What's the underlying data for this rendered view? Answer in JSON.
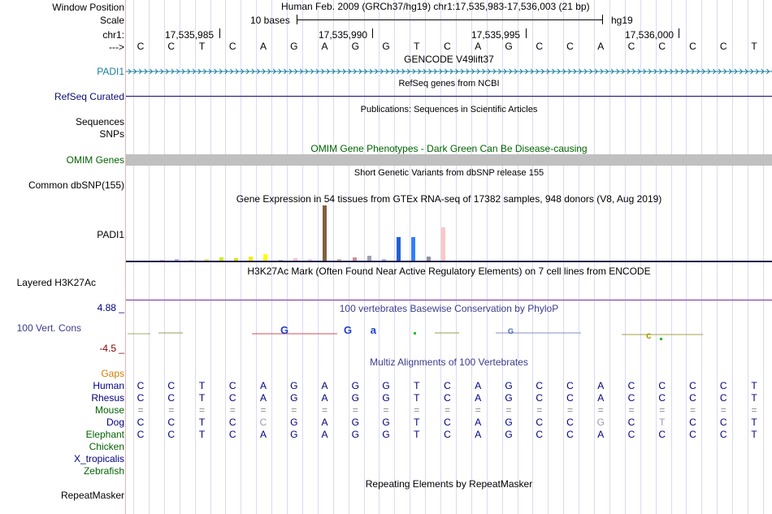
{
  "header": {
    "window_position_label": "Window Position",
    "scale_label": "Scale",
    "chrom_label": "chr1:",
    "strand_label": "--->",
    "position_text": "Human Feb. 2009 (GRCh37/hg19)   chr1:17,535,983-17,536,003 (21 bp)",
    "scale_text": "10 bases",
    "assembly": "hg19",
    "ticks": [
      "17,535,985",
      "17,535,990",
      "17,535,995",
      "17,536,000"
    ]
  },
  "sequence": [
    "C",
    "C",
    "T",
    "C",
    "A",
    "G",
    "A",
    "G",
    "G",
    "T",
    "C",
    "A",
    "G",
    "C",
    "C",
    "A",
    "C",
    "C",
    "C",
    "C",
    "T"
  ],
  "tracks": {
    "gencode": {
      "title": "GENCODE V49lift37",
      "label": "PADI1"
    },
    "refseq": {
      "title": "RefSeq genes from NCBI",
      "label": "RefSeq Curated"
    },
    "publications": {
      "title": "Publications: Sequences in Scientific Articles",
      "label": "Sequences"
    },
    "snps_label": "SNPs",
    "omim": {
      "title": "OMIM Gene Phenotypes - Dark Green Can Be Disease-causing",
      "label": "OMIM Genes"
    },
    "dbsnp": {
      "title": "Short Genetic Variants from dbSNP release 155",
      "label": "Common dbSNP(155)"
    },
    "gtex": {
      "title": "Gene Expression in 54 tissues from GTEx RNA-seq of 17382 samples, 948 donors (V8, Aug 2019)",
      "label": "PADI1"
    },
    "h3k27ac": {
      "title": "H3K27Ac Mark (Often Found Near Active Regulatory Elements) on 7 cell lines from ENCODE",
      "label": "Layered H3K27Ac"
    },
    "phylop": {
      "title": "100 vertebrates Basewise Conservation by PhyloP",
      "label": "100 Vert. Cons",
      "max": "4.88 _",
      "min": "-4.5 _"
    },
    "multiz": {
      "title": "Multiz Alignments of 100 Vertebrates",
      "gaps_label": "Gaps"
    },
    "repeatmasker": {
      "title": "Repeating Elements by RepeatMasker",
      "label": "RepeatMasker"
    }
  },
  "species": [
    {
      "name": "Human",
      "color": "#000080",
      "bases": [
        "C",
        "C",
        "T",
        "C",
        "A",
        "G",
        "A",
        "G",
        "G",
        "T",
        "C",
        "A",
        "G",
        "C",
        "C",
        "A",
        "C",
        "C",
        "C",
        "C",
        "T"
      ]
    },
    {
      "name": "Rhesus",
      "color": "#000080",
      "bases": [
        "C",
        "C",
        "T",
        "C",
        "A",
        "G",
        "A",
        "G",
        "G",
        "T",
        "C",
        "A",
        "G",
        "C",
        "C",
        "A",
        "C",
        "C",
        "C",
        "C",
        "T"
      ]
    },
    {
      "name": "Mouse",
      "color": "#006400",
      "bases": [
        "=",
        "=",
        "=",
        "=",
        "=",
        "=",
        "=",
        "=",
        "=",
        "=",
        "=",
        "=",
        "=",
        "=",
        "=",
        "=",
        "=",
        "=",
        "=",
        "=",
        "="
      ]
    },
    {
      "name": "Dog",
      "color": "#000080",
      "bases": [
        "C",
        "C",
        "T",
        "C",
        "C",
        "G",
        "A",
        "G",
        "G",
        "T",
        "C",
        "A",
        "G",
        "C",
        "C",
        "G",
        "C",
        "T",
        "C",
        "C",
        "T"
      ]
    },
    {
      "name": "Elephant",
      "color": "#006400",
      "bases": [
        "C",
        "C",
        "T",
        "C",
        "A",
        "G",
        "A",
        "G",
        "G",
        "T",
        "C",
        "A",
        "G",
        "C",
        "C",
        "A",
        "C",
        "C",
        "C",
        "C",
        "T"
      ]
    },
    {
      "name": "Chicken",
      "color": "#006400",
      "bases": []
    },
    {
      "name": "X_tropicalis",
      "color": "#000080",
      "bases": []
    },
    {
      "name": "Zebrafish",
      "color": "#006400",
      "bases": []
    }
  ],
  "dog_mismatch_indices": [
    4,
    15,
    17
  ],
  "gtex_bars": [
    {
      "color": "#ffb0c8",
      "value": 0.02
    },
    {
      "color": "#b0b0ff",
      "value": 0.03
    },
    {
      "color": "#d0d0d0",
      "value": 0.02
    },
    {
      "color": "#f0e060",
      "value": 0.03
    },
    {
      "color": "#ccee00",
      "value": 0.06
    },
    {
      "color": "#dddd00",
      "value": 0.05
    },
    {
      "color": "#eeee00",
      "value": 0.07
    },
    {
      "color": "#ffff00",
      "value": 0.12
    },
    {
      "color": "#c0b0d0",
      "value": 0.02
    },
    {
      "color": "#ffc0d0",
      "value": 0.04
    },
    {
      "color": "#e8d0e0",
      "value": 0.03
    },
    {
      "color": "#806040",
      "value": 1.0
    },
    {
      "color": "#d0b0a0",
      "value": 0.03
    },
    {
      "color": "#c89090",
      "value": 0.06
    },
    {
      "color": "#a0a0b0",
      "value": 0.09
    },
    {
      "color": "#b0b0e0",
      "value": 0.03
    },
    {
      "color": "#2060d0",
      "value": 0.43
    },
    {
      "color": "#3080ff",
      "value": 0.43
    },
    {
      "color": "#9090a0",
      "value": 0.08
    },
    {
      "color": "#f8c8c8",
      "value": 0.6
    }
  ],
  "colors": {
    "gencode": "#1a7fa0",
    "refseq": "#0c0c78",
    "omim": "#006400",
    "phylop_title": "#3c3c8c",
    "phylop_max": "#000080",
    "phylop_min": "#800000",
    "gaps": "#d08000"
  }
}
